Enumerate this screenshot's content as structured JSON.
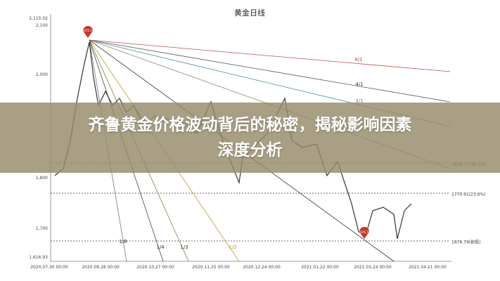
{
  "chart": {
    "title": "黄金日线",
    "y_labels": [
      "2,115.02",
      "2,100",
      "2,000",
      "1,800",
      "1,700",
      "1,616.93"
    ],
    "x_labels": [
      "2020.07.30 00:00",
      "2020.09.28 00:00",
      "2020.10.27 00:00",
      "2020.11.25 00:00",
      "2020.12.24 00:00",
      "2021.01.22 00:00",
      "2021.03.24 00:00",
      "2021.04.21 00:00"
    ],
    "fan_labels": [
      "8/1",
      "4/1",
      "3/1",
      "1/8",
      "1/4",
      "1/3",
      "1/2"
    ],
    "levels": [
      "1828.37(38.2%)",
      "1770.91(23.6%)",
      "1676.79(前低)"
    ],
    "markers": [
      "2075.18",
      "1676.79"
    ]
  },
  "banner": {
    "lines": [
      "齐鲁黄金价格波动背后的秘密，揭秘影响因素",
      "深度分析"
    ]
  }
}
